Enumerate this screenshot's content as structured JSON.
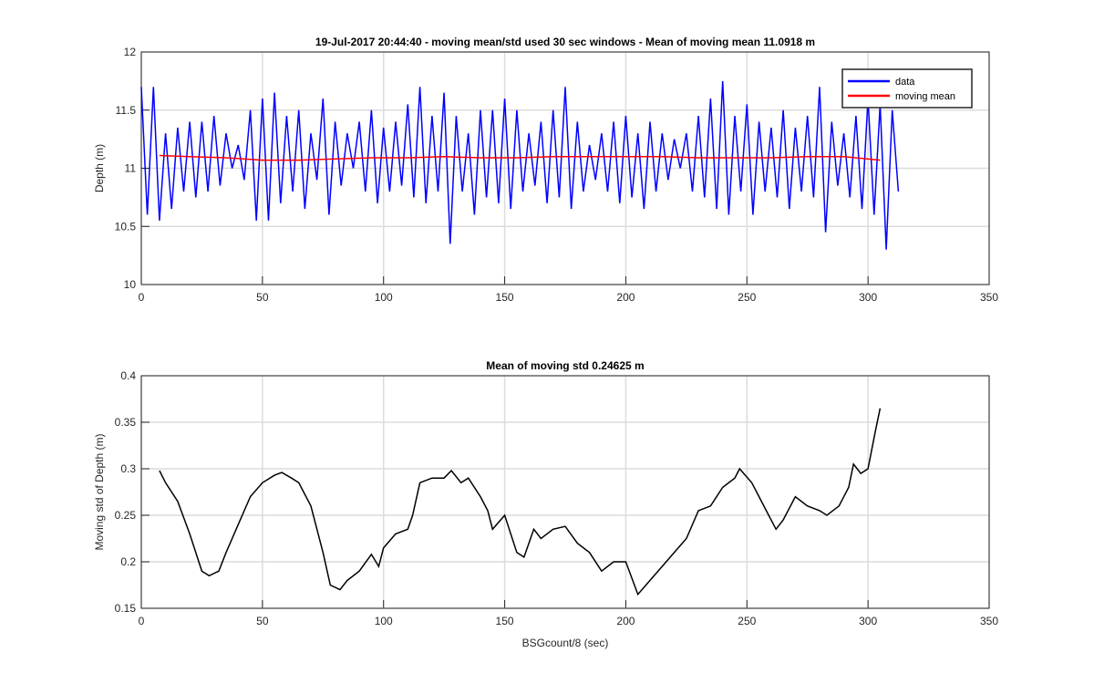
{
  "chart_data": [
    {
      "type": "line",
      "title": "19-Jul-2017 20:44:40 - moving mean/std used 30 sec windows - Mean of moving mean 11.0918 m",
      "ylabel": "Depth (m)",
      "xlim": [
        0,
        350
      ],
      "xticks": [
        0,
        50,
        100,
        150,
        200,
        250,
        300,
        350
      ],
      "ylim": [
        10,
        12
      ],
      "yticks": [
        10,
        10.5,
        11,
        11.5,
        12
      ],
      "grid": true,
      "legend": "upper right",
      "series": [
        {
          "name": "data",
          "color": "#0000ff",
          "x": [
            0,
            2.5,
            5,
            7.5,
            10,
            12.5,
            15,
            17.5,
            20,
            22.5,
            25,
            27.5,
            30,
            32.5,
            35,
            37.5,
            40,
            42.5,
            45,
            47.5,
            50,
            52.5,
            55,
            57.5,
            60,
            62.5,
            65,
            67.5,
            70,
            72.5,
            75,
            77.5,
            80,
            82.5,
            85,
            87.5,
            90,
            92.5,
            95,
            97.5,
            100,
            102.5,
            105,
            107.5,
            110,
            112.5,
            115,
            117.5,
            120,
            122.5,
            125,
            127.5,
            130,
            132.5,
            135,
            137.5,
            140,
            142.5,
            145,
            147.5,
            150,
            152.5,
            155,
            157.5,
            160,
            162.5,
            165,
            167.5,
            170,
            172.5,
            175,
            177.5,
            180,
            182.5,
            185,
            187.5,
            190,
            192.5,
            195,
            197.5,
            200,
            202.5,
            205,
            207.5,
            210,
            212.5,
            215,
            217.5,
            220,
            222.5,
            225,
            227.5,
            230,
            232.5,
            235,
            237.5,
            240,
            242.5,
            245,
            247.5,
            250,
            252.5,
            255,
            257.5,
            260,
            262.5,
            265,
            267.5,
            270,
            272.5,
            275,
            277.5,
            280,
            282.5,
            285,
            287.5,
            290,
            292.5,
            295,
            297.5,
            300,
            302.5,
            305,
            307.5,
            310,
            312.5
          ],
          "values": [
            11.7,
            10.6,
            11.7,
            10.55,
            11.3,
            10.65,
            11.35,
            10.8,
            11.4,
            10.75,
            11.4,
            10.8,
            11.45,
            10.85,
            11.3,
            11.0,
            11.2,
            10.9,
            11.5,
            10.55,
            11.6,
            10.55,
            11.65,
            10.7,
            11.45,
            10.8,
            11.5,
            10.65,
            11.3,
            10.9,
            11.6,
            10.6,
            11.4,
            10.85,
            11.3,
            11.0,
            11.4,
            10.8,
            11.5,
            10.7,
            11.35,
            10.8,
            11.4,
            10.85,
            11.55,
            10.75,
            11.7,
            10.7,
            11.45,
            10.8,
            11.65,
            10.35,
            11.45,
            10.8,
            11.3,
            10.6,
            11.5,
            10.75,
            11.5,
            10.7,
            11.6,
            10.65,
            11.5,
            10.8,
            11.3,
            10.85,
            11.4,
            10.7,
            11.5,
            10.75,
            11.7,
            10.65,
            11.4,
            10.8,
            11.2,
            10.9,
            11.3,
            10.8,
            11.4,
            10.7,
            11.45,
            10.75,
            11.3,
            10.65,
            11.4,
            10.8,
            11.3,
            10.9,
            11.25,
            11.0,
            11.3,
            10.8,
            11.45,
            10.75,
            11.6,
            10.65,
            11.75,
            10.6,
            11.45,
            10.8,
            11.55,
            10.6,
            11.4,
            10.8,
            11.35,
            10.75,
            11.5,
            10.65,
            11.35,
            10.8,
            11.45,
            10.75,
            11.7,
            10.45,
            11.4,
            10.85,
            11.3,
            10.75,
            11.45,
            10.65,
            11.6,
            10.6,
            11.55,
            10.3,
            11.5,
            10.8
          ]
        },
        {
          "name": "moving mean",
          "color": "#ff0000",
          "x": [
            7.5,
            20,
            35,
            50,
            65,
            80,
            95,
            110,
            125,
            140,
            155,
            170,
            185,
            200,
            215,
            230,
            245,
            260,
            275,
            290,
            305
          ],
          "values": [
            11.11,
            11.1,
            11.09,
            11.07,
            11.07,
            11.08,
            11.09,
            11.09,
            11.1,
            11.09,
            11.09,
            11.1,
            11.1,
            11.1,
            11.1,
            11.09,
            11.09,
            11.09,
            11.1,
            11.1,
            11.07
          ]
        }
      ]
    },
    {
      "type": "line",
      "title": "Mean of moving std 0.24625 m",
      "xlabel": "BSGcount/8 (sec)",
      "ylabel": "Moving std of Depth (m)",
      "xlim": [
        0,
        350
      ],
      "xticks": [
        0,
        50,
        100,
        150,
        200,
        250,
        300,
        350
      ],
      "ylim": [
        0.15,
        0.4
      ],
      "yticks": [
        0.15,
        0.2,
        0.25,
        0.3,
        0.35,
        0.4
      ],
      "grid": true,
      "series": [
        {
          "color": "#000000",
          "x": [
            7.5,
            10,
            15,
            20,
            25,
            28,
            32,
            35,
            40,
            45,
            50,
            55,
            58,
            62,
            65,
            70,
            75,
            78,
            82,
            85,
            90,
            95,
            98,
            100,
            105,
            110,
            112,
            115,
            120,
            125,
            128,
            132,
            135,
            140,
            143,
            145,
            150,
            155,
            158,
            162,
            165,
            170,
            175,
            180,
            185,
            190,
            195,
            200,
            205,
            210,
            215,
            220,
            225,
            230,
            235,
            240,
            245,
            247,
            252,
            255,
            258,
            262,
            265,
            270,
            275,
            280,
            283,
            288,
            292,
            294,
            297,
            300,
            303,
            305
          ],
          "values": [
            0.298,
            0.285,
            0.265,
            0.23,
            0.19,
            0.185,
            0.19,
            0.21,
            0.24,
            0.27,
            0.285,
            0.293,
            0.296,
            0.29,
            0.285,
            0.26,
            0.21,
            0.175,
            0.17,
            0.18,
            0.19,
            0.208,
            0.195,
            0.215,
            0.23,
            0.235,
            0.25,
            0.285,
            0.29,
            0.29,
            0.298,
            0.285,
            0.29,
            0.27,
            0.255,
            0.235,
            0.25,
            0.21,
            0.205,
            0.235,
            0.225,
            0.235,
            0.238,
            0.22,
            0.21,
            0.19,
            0.2,
            0.2,
            0.165,
            0.18,
            0.195,
            0.21,
            0.225,
            0.255,
            0.26,
            0.28,
            0.29,
            0.3,
            0.285,
            0.27,
            0.255,
            0.235,
            0.245,
            0.27,
            0.26,
            0.255,
            0.25,
            0.26,
            0.28,
            0.305,
            0.295,
            0.3,
            0.34,
            0.365
          ]
        }
      ]
    }
  ]
}
